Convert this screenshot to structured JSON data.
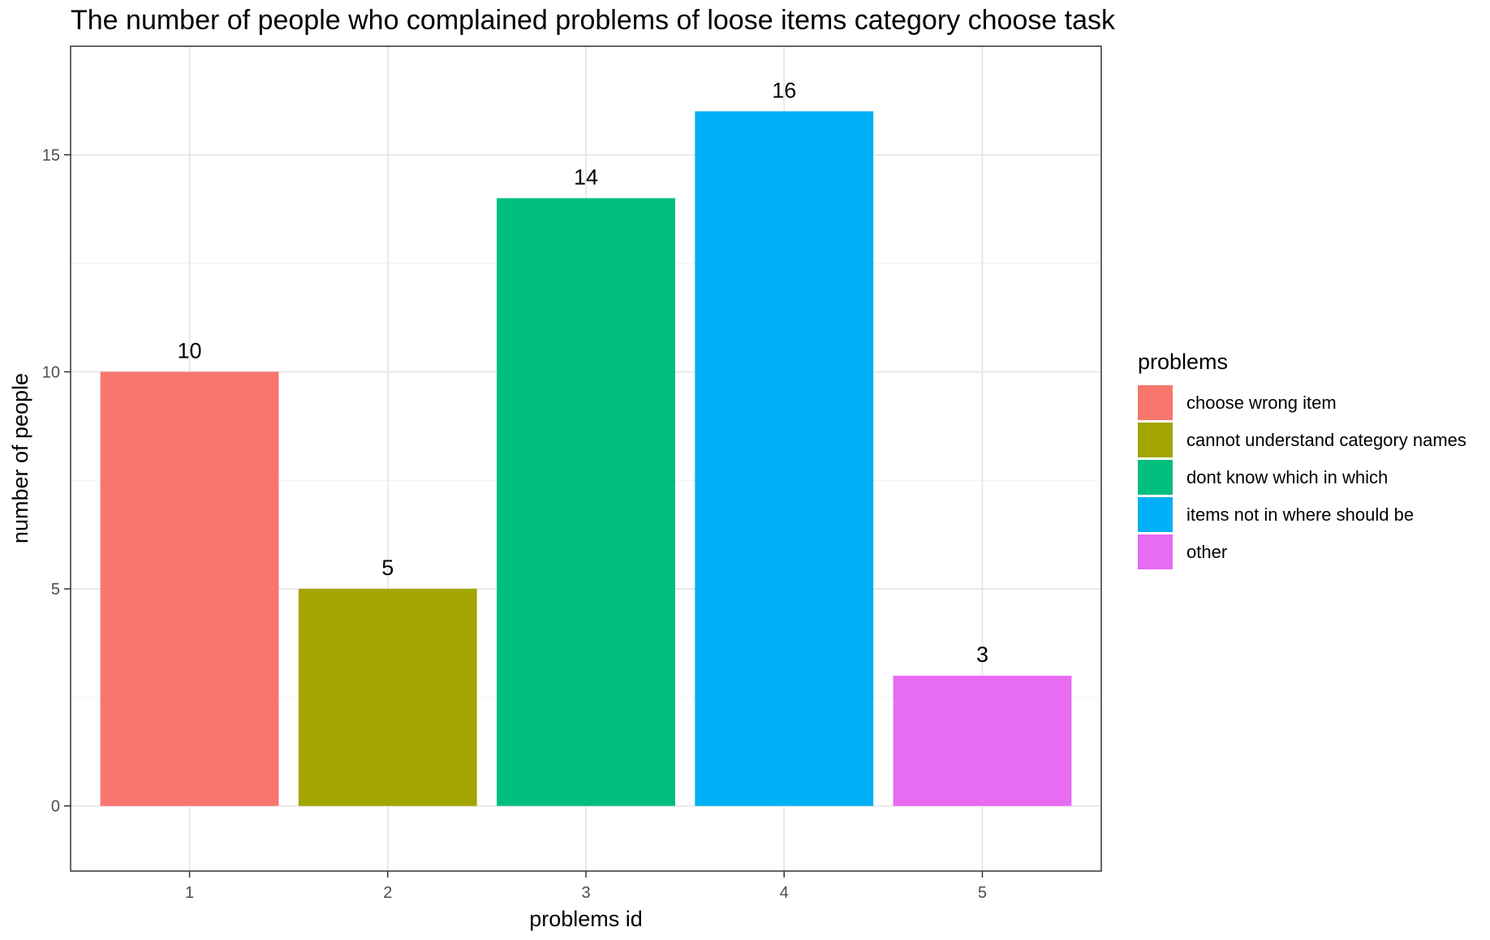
{
  "chart_data": {
    "type": "bar",
    "title": "The number of people who complained problems of loose items category choose task",
    "xlabel": "problems id",
    "ylabel": "number of people",
    "categories": [
      "1",
      "2",
      "3",
      "4",
      "5"
    ],
    "values": [
      10,
      5,
      14,
      16,
      3
    ],
    "data_labels": [
      "10",
      "5",
      "14",
      "16",
      "3"
    ],
    "colors": [
      "#F8766D",
      "#A3A500",
      "#00BF7D",
      "#00B0F6",
      "#E76BF3"
    ],
    "ylim": [
      -1.5,
      17.5
    ],
    "yticks": [
      0,
      5,
      10,
      15
    ],
    "ytick_labels": [
      "0",
      "5",
      "10",
      "15"
    ],
    "grid": true,
    "legend": {
      "title": "problems",
      "position": "right",
      "entries": [
        "choose wrong item",
        "cannot understand category names",
        "dont know which in which",
        "items not in where should be",
        "other"
      ]
    }
  }
}
